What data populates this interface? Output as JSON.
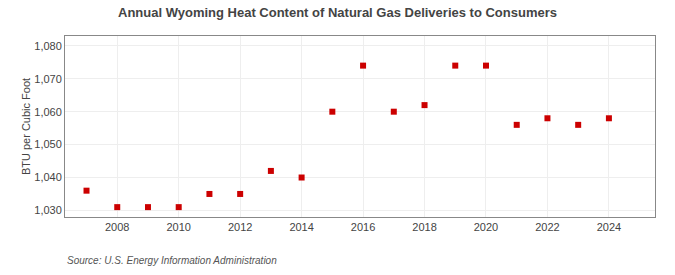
{
  "chart_data": {
    "type": "scatter",
    "title": "Annual Wyoming Heat Content of Natural Gas Deliveries to Consumers",
    "ylabel": "BTU per Cubic Foot",
    "annotations": [
      "Source: U.S. Energy Information Administration"
    ],
    "x": [
      2007,
      2008,
      2009,
      2010,
      2011,
      2012,
      2013,
      2014,
      2015,
      2016,
      2017,
      2018,
      2019,
      2020,
      2021,
      2022,
      2023,
      2024
    ],
    "values": [
      1036,
      1031,
      1031,
      1031,
      1035,
      1035,
      1042,
      1040,
      1060,
      1074,
      1060,
      1062,
      1074,
      1074,
      1056,
      1058,
      1056,
      1058
    ],
    "color": "#cc0000",
    "marker": "square",
    "xlim": [
      2006.3,
      2025.5
    ],
    "xticks": [
      2008,
      2010,
      2012,
      2014,
      2016,
      2018,
      2020,
      2022,
      2024
    ],
    "ylim": [
      1028,
      1083
    ],
    "yticks": [
      {
        "value": 1030,
        "label": "1,030"
      },
      {
        "value": 1040,
        "label": "1,040"
      },
      {
        "value": 1050,
        "label": "1,050"
      },
      {
        "value": 1060,
        "label": "1,060"
      },
      {
        "value": 1070,
        "label": "1,070"
      },
      {
        "value": 1080,
        "label": "1,080"
      }
    ],
    "grid": true
  }
}
